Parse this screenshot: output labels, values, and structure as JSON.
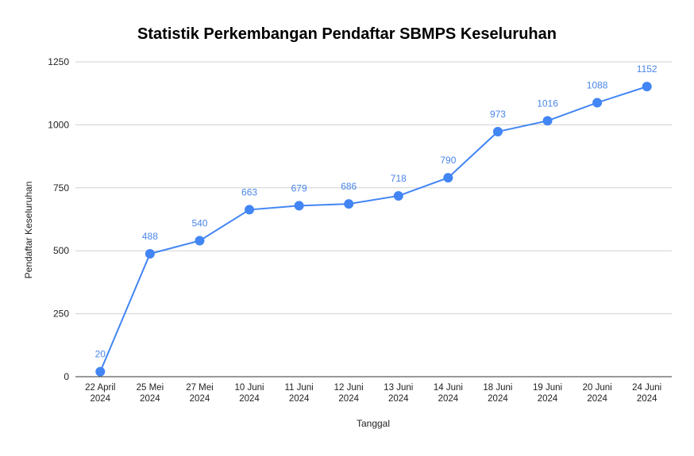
{
  "chart_data": {
    "type": "line",
    "title": "Statistik Perkembangan Pendaftar SBMPS Keseluruhan",
    "xlabel": "Tanggal",
    "ylabel": "Pendaftar Keseluruhan",
    "categories": [
      [
        "22 April",
        "2024"
      ],
      [
        "25 Mei",
        "2024"
      ],
      [
        "27 Mei",
        "2024"
      ],
      [
        "10 Juni",
        "2024"
      ],
      [
        "11 Juni",
        "2024"
      ],
      [
        "12 Juni",
        "2024"
      ],
      [
        "13 Juni",
        "2024"
      ],
      [
        "14 Juni",
        "2024"
      ],
      [
        "18 Juni",
        "2024"
      ],
      [
        "19 Juni",
        "2024"
      ],
      [
        "20 Juni",
        "2024"
      ],
      [
        "24 Juni",
        "2024"
      ]
    ],
    "series": [
      {
        "values": [
          20,
          488,
          540,
          663,
          679,
          686,
          718,
          790,
          973,
          1016,
          1088,
          1152
        ],
        "color": "#4285f4"
      }
    ],
    "ylim": [
      0,
      1250
    ],
    "yticks": [
      "0",
      "250",
      "500",
      "750",
      "1000",
      "1250"
    ],
    "grid": true,
    "legend": "none",
    "data_labels": true
  }
}
